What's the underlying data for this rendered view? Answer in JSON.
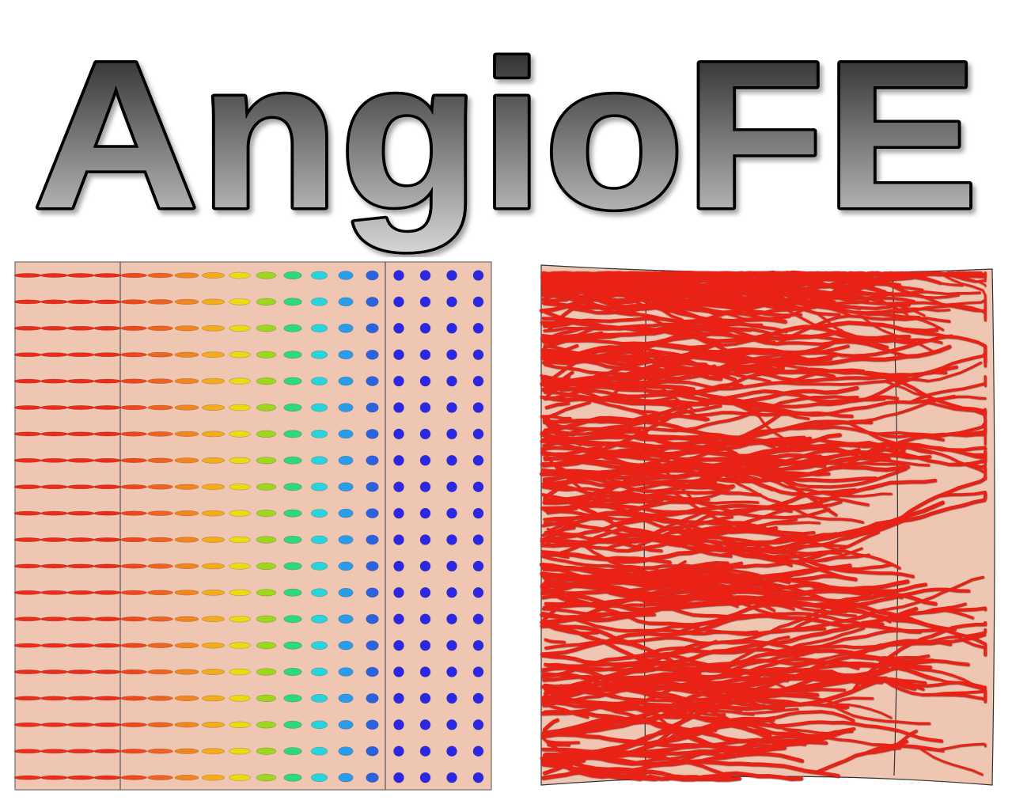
{
  "logo": {
    "text": "AngioFE",
    "gradient_top": "#2e2e2e",
    "gradient_bottom": "#d4d4d4",
    "outline_color": "#000000"
  },
  "fiber_panel": {
    "background": "#efc6b1",
    "divider_color": "#555555",
    "rows": 20,
    "column_colors": [
      "#ee2a18",
      "#ee2a18",
      "#ee2a18",
      "#ee2a18",
      "#f2461a",
      "#f06220",
      "#f2861e",
      "#f3ac1c",
      "#eeda12",
      "#9ed81c",
      "#2ed87e",
      "#2ad4dc",
      "#2a9cec",
      "#2a62e0",
      "#2a28e4",
      "#2a28e4",
      "#2a28e4",
      "#2a28e4"
    ],
    "column_elongation": [
      1.0,
      1.0,
      1.0,
      1.0,
      0.95,
      0.9,
      0.82,
      0.74,
      0.66,
      0.56,
      0.46,
      0.36,
      0.26,
      0.12,
      0.0,
      0.0,
      0.0,
      0.0
    ],
    "icon": "oriented-ellipsoid-glyphs"
  },
  "vessel_panel": {
    "background": "#efc6b1",
    "vessel_color": "#ea2419",
    "icon": "microvessel-network"
  }
}
